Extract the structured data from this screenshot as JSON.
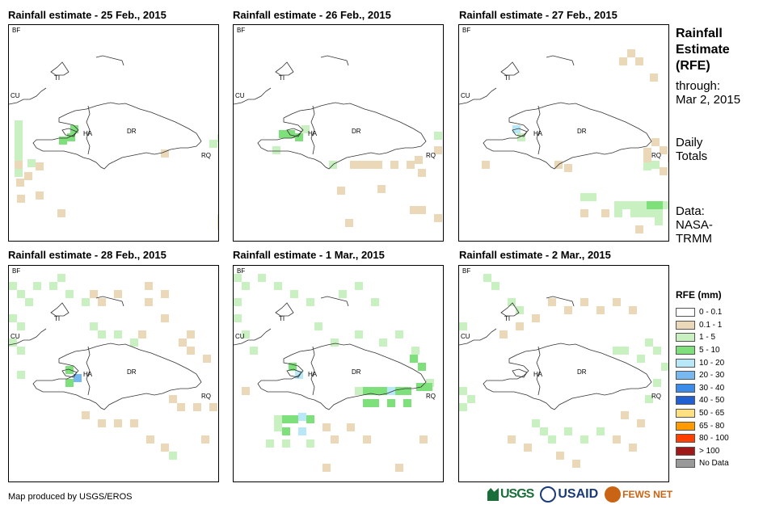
{
  "panels": [
    {
      "title": "Rainfall estimate - 25 Feb., 2015",
      "labels": {
        "HA": "HA",
        "DR": "DR",
        "RQ": "RQ",
        "CU": "CU",
        "BF": "BF",
        "TI": "TI"
      },
      "cells": [
        [
          7,
          118,
          "#c8f0c0"
        ],
        [
          7,
          128,
          "#c8f0c0"
        ],
        [
          7,
          138,
          "#c8f0c0"
        ],
        [
          7,
          148,
          "#c8f0c0"
        ],
        [
          7,
          158,
          "#c8f0c0"
        ],
        [
          7,
          168,
          "#ead8b8"
        ],
        [
          7,
          178,
          "#c8f0c0"
        ],
        [
          9,
          190,
          "#ead8b8"
        ],
        [
          19,
          182,
          "#ead8b8"
        ],
        [
          23,
          166,
          "#c8f0c0"
        ],
        [
          33,
          170,
          "#ead8b8"
        ],
        [
          33,
          206,
          "#ead8b8"
        ],
        [
          10,
          210,
          "#ead8b8"
        ],
        [
          60,
          228,
          "#ead8b8"
        ],
        [
          76,
          124,
          "#7ee07a"
        ],
        [
          72,
          134,
          "#7ee07a"
        ],
        [
          62,
          138,
          "#7ee07a"
        ],
        [
          248,
          142,
          "#c8f0c0"
        ],
        [
          258,
          135,
          "#c8f0c0"
        ],
        [
          188,
          154,
          "#ead8b8"
        ],
        [
          258,
          234,
          "#ead8b8"
        ],
        [
          258,
          244,
          "#ead8b8"
        ]
      ]
    },
    {
      "title": "Rainfall estimate - 26 Feb., 2015",
      "labels": {
        "HA": "HA",
        "DR": "DR",
        "RQ": "RQ",
        "CU": "CU",
        "BF": "BF",
        "TI": "TI"
      },
      "cells": [
        [
          56,
          130,
          "#7ee07a"
        ],
        [
          66,
          130,
          "#7ee07a"
        ],
        [
          76,
          134,
          "#7ee07a"
        ],
        [
          84,
          124,
          "#c8f0c0"
        ],
        [
          48,
          150,
          "#c8f0c0"
        ],
        [
          118,
          168,
          "#c8f0c0"
        ],
        [
          144,
          168,
          "#ead8b8"
        ],
        [
          154,
          168,
          "#ead8b8"
        ],
        [
          164,
          168,
          "#ead8b8"
        ],
        [
          174,
          168,
          "#ead8b8"
        ],
        [
          194,
          168,
          "#ead8b8"
        ],
        [
          214,
          168,
          "#ead8b8"
        ],
        [
          224,
          162,
          "#ead8b8"
        ],
        [
          248,
          132,
          "#c8f0c0"
        ],
        [
          248,
          150,
          "#ead8b8"
        ],
        [
          228,
          178,
          "#ead8b8"
        ],
        [
          218,
          224,
          "#ead8b8"
        ],
        [
          228,
          224,
          "#ead8b8"
        ],
        [
          138,
          240,
          "#ead8b8"
        ],
        [
          248,
          234,
          "#ead8b8"
        ],
        [
          178,
          198,
          "#ead8b8"
        ],
        [
          128,
          200,
          "#ead8b8"
        ]
      ]
    },
    {
      "title": "Rainfall estimate - 27 Feb., 2015",
      "labels": {
        "HA": "HA",
        "DR": "DR",
        "RQ": "RQ",
        "CU": "CU",
        "BF": "BF",
        "TI": "TI"
      },
      "cells": [
        [
          208,
          30,
          "#ead8b8"
        ],
        [
          198,
          40,
          "#ead8b8"
        ],
        [
          218,
          40,
          "#ead8b8"
        ],
        [
          236,
          60,
          "#ead8b8"
        ],
        [
          228,
          152,
          "#ead8b8"
        ],
        [
          238,
          140,
          "#ead8b8"
        ],
        [
          248,
          150,
          "#ead8b8"
        ],
        [
          228,
          160,
          "#ead8b8"
        ],
        [
          258,
          160,
          "#ead8b8"
        ],
        [
          228,
          170,
          "#c8f0c0"
        ],
        [
          238,
          168,
          "#c8f0c0"
        ],
        [
          248,
          176,
          "#ead8b8"
        ],
        [
          66,
          124,
          "#b8e8f8"
        ],
        [
          72,
          134,
          "#c8f0c0"
        ],
        [
          118,
          168,
          "#ead8b8"
        ],
        [
          130,
          172,
          "#ead8b8"
        ],
        [
          28,
          168,
          "#ead8b8"
        ],
        [
          150,
          208,
          "#c8f0c0"
        ],
        [
          160,
          208,
          "#c8f0c0"
        ],
        [
          192,
          218,
          "#c8f0c0"
        ],
        [
          202,
          218,
          "#c8f0c0"
        ],
        [
          212,
          218,
          "#c8f0c0"
        ],
        [
          222,
          218,
          "#c8f0c0"
        ],
        [
          232,
          218,
          "#7ee07a"
        ],
        [
          242,
          218,
          "#7ee07a"
        ],
        [
          252,
          218,
          "#c8f0c0"
        ],
        [
          192,
          228,
          "#c8f0c0"
        ],
        [
          212,
          228,
          "#c8f0c0"
        ],
        [
          222,
          228,
          "#c8f0c0"
        ],
        [
          232,
          228,
          "#c8f0c0"
        ],
        [
          242,
          228,
          "#c8f0c0"
        ],
        [
          242,
          238,
          "#c8f0c0"
        ],
        [
          218,
          248,
          "#ead8b8"
        ],
        [
          176,
          228,
          "#ead8b8"
        ],
        [
          150,
          228,
          "#ead8b8"
        ]
      ]
    },
    {
      "title": "Rainfall estimate - 28 Feb., 2015",
      "labels": {
        "HA": "HA",
        "DR": "DR",
        "RQ": "RQ",
        "CU": "CU",
        "BF": "BF",
        "TI": "TI"
      },
      "cells": [
        [
          0,
          20,
          "#c8f0c0"
        ],
        [
          10,
          30,
          "#c8f0c0"
        ],
        [
          20,
          40,
          "#c8f0c0"
        ],
        [
          30,
          20,
          "#c8f0c0"
        ],
        [
          50,
          20,
          "#c8f0c0"
        ],
        [
          60,
          10,
          "#c8f0c0"
        ],
        [
          70,
          30,
          "#c8f0c0"
        ],
        [
          90,
          40,
          "#c8f0c0"
        ],
        [
          100,
          30,
          "#ead8b8"
        ],
        [
          110,
          40,
          "#ead8b8"
        ],
        [
          130,
          30,
          "#ead8b8"
        ],
        [
          168,
          20,
          "#ead8b8"
        ],
        [
          168,
          40,
          "#ead8b8"
        ],
        [
          188,
          30,
          "#ead8b8"
        ],
        [
          188,
          60,
          "#ead8b8"
        ],
        [
          0,
          60,
          "#c8f0c0"
        ],
        [
          10,
          70,
          "#c8f0c0"
        ],
        [
          0,
          90,
          "#c8f0c0"
        ],
        [
          10,
          100,
          "#c8f0c0"
        ],
        [
          100,
          70,
          "#c8f0c0"
        ],
        [
          110,
          80,
          "#c8f0c0"
        ],
        [
          130,
          80,
          "#c8f0c0"
        ],
        [
          150,
          90,
          "#c8f0c0"
        ],
        [
          160,
          80,
          "#ead8b8"
        ],
        [
          210,
          90,
          "#ead8b8"
        ],
        [
          220,
          100,
          "#ead8b8"
        ],
        [
          240,
          110,
          "#ead8b8"
        ],
        [
          220,
          80,
          "#ead8b8"
        ],
        [
          70,
          124,
          "#7ee07a"
        ],
        [
          80,
          134,
          "#78b8f0"
        ],
        [
          70,
          140,
          "#7ee07a"
        ],
        [
          10,
          130,
          "#c8f0c0"
        ],
        [
          198,
          160,
          "#ead8b8"
        ],
        [
          208,
          170,
          "#ead8b8"
        ],
        [
          228,
          170,
          "#ead8b8"
        ],
        [
          248,
          170,
          "#ead8b8"
        ],
        [
          90,
          180,
          "#ead8b8"
        ],
        [
          110,
          190,
          "#ead8b8"
        ],
        [
          130,
          190,
          "#ead8b8"
        ],
        [
          150,
          190,
          "#ead8b8"
        ],
        [
          170,
          210,
          "#ead8b8"
        ],
        [
          188,
          220,
          "#ead8b8"
        ],
        [
          198,
          230,
          "#c8f0c0"
        ],
        [
          238,
          210,
          "#ead8b8"
        ]
      ]
    },
    {
      "title": "Rainfall estimate - 1 Mar., 2015",
      "labels": {
        "HA": "HA",
        "DR": "DR",
        "RQ": "RQ",
        "CU": "CU",
        "BF": "BF",
        "TI": "TI"
      },
      "cells": [
        [
          0,
          10,
          "#c8f0c0"
        ],
        [
          10,
          20,
          "#c8f0c0"
        ],
        [
          30,
          10,
          "#c8f0c0"
        ],
        [
          50,
          20,
          "#c8f0c0"
        ],
        [
          70,
          30,
          "#c8f0c0"
        ],
        [
          90,
          40,
          "#c8f0c0"
        ],
        [
          130,
          30,
          "#c8f0c0"
        ],
        [
          150,
          20,
          "#c8f0c0"
        ],
        [
          170,
          40,
          "#c8f0c0"
        ],
        [
          0,
          40,
          "#c8f0c0"
        ],
        [
          0,
          60,
          "#c8f0c0"
        ],
        [
          10,
          80,
          "#c8f0c0"
        ],
        [
          20,
          100,
          "#c8f0c0"
        ],
        [
          100,
          70,
          "#c8f0c0"
        ],
        [
          120,
          90,
          "#c8f0c0"
        ],
        [
          150,
          80,
          "#c8f0c0"
        ],
        [
          180,
          90,
          "#c8f0c0"
        ],
        [
          200,
          80,
          "#c8f0c0"
        ],
        [
          220,
          100,
          "#c8f0c0"
        ],
        [
          218,
          110,
          "#7ee07a"
        ],
        [
          228,
          120,
          "#7ee07a"
        ],
        [
          238,
          140,
          "#c8f0c0"
        ],
        [
          68,
          120,
          "#7ee07a"
        ],
        [
          76,
          130,
          "#b8e8f8"
        ],
        [
          10,
          150,
          "#ead8b8"
        ],
        [
          150,
          150,
          "#c8f0c0"
        ],
        [
          160,
          150,
          "#7ee07a"
        ],
        [
          170,
          150,
          "#7ee07a"
        ],
        [
          180,
          150,
          "#7ee07a"
        ],
        [
          190,
          150,
          "#b8e8f8"
        ],
        [
          200,
          150,
          "#7ee07a"
        ],
        [
          210,
          150,
          "#7ee07a"
        ],
        [
          226,
          145,
          "#7ee07a"
        ],
        [
          236,
          145,
          "#7ee07a"
        ],
        [
          160,
          165,
          "#7ee07a"
        ],
        [
          170,
          165,
          "#7ee07a"
        ],
        [
          190,
          165,
          "#7ee07a"
        ],
        [
          210,
          165,
          "#7ee07a"
        ],
        [
          50,
          185,
          "#c8f0c0"
        ],
        [
          60,
          185,
          "#7ee07a"
        ],
        [
          70,
          185,
          "#7ee07a"
        ],
        [
          80,
          182,
          "#b8e8f8"
        ],
        [
          90,
          185,
          "#7ee07a"
        ],
        [
          50,
          195,
          "#c8f0c0"
        ],
        [
          60,
          200,
          "#7ee07a"
        ],
        [
          80,
          200,
          "#b8e8f8"
        ],
        [
          110,
          195,
          "#ead8b8"
        ],
        [
          140,
          195,
          "#ead8b8"
        ],
        [
          120,
          210,
          "#ead8b8"
        ],
        [
          160,
          210,
          "#ead8b8"
        ],
        [
          40,
          215,
          "#c8f0c0"
        ],
        [
          60,
          215,
          "#c8f0c0"
        ],
        [
          90,
          215,
          "#c8f0c0"
        ],
        [
          110,
          245,
          "#ead8b8"
        ],
        [
          200,
          245,
          "#ead8b8"
        ],
        [
          230,
          210,
          "#ead8b8"
        ]
      ]
    },
    {
      "title": "Rainfall estimate - 2 Mar., 2015",
      "labels": {
        "HA": "HA",
        "DR": "DR",
        "RQ": "RQ",
        "CU": "CU",
        "BF": "BF",
        "TI": "TI"
      },
      "cells": [
        [
          30,
          10,
          "#c8f0c0"
        ],
        [
          40,
          20,
          "#c8f0c0"
        ],
        [
          60,
          40,
          "#c8f0c0"
        ],
        [
          70,
          50,
          "#c8f0c0"
        ],
        [
          90,
          60,
          "#ead8b8"
        ],
        [
          110,
          40,
          "#ead8b8"
        ],
        [
          130,
          50,
          "#ead8b8"
        ],
        [
          150,
          40,
          "#ead8b8"
        ],
        [
          170,
          50,
          "#ead8b8"
        ],
        [
          190,
          40,
          "#ead8b8"
        ],
        [
          210,
          50,
          "#ead8b8"
        ],
        [
          0,
          70,
          "#c8f0c0"
        ],
        [
          50,
          80,
          "#ead8b8"
        ],
        [
          70,
          70,
          "#ead8b8"
        ],
        [
          190,
          100,
          "#c8f0c0"
        ],
        [
          200,
          100,
          "#c8f0c0"
        ],
        [
          220,
          110,
          "#c8f0c0"
        ],
        [
          230,
          90,
          "#c8f0c0"
        ],
        [
          240,
          100,
          "#c8f0c0"
        ],
        [
          250,
          120,
          "#c8f0c0"
        ],
        [
          240,
          140,
          "#c8f0c0"
        ],
        [
          230,
          160,
          "#c8f0c0"
        ],
        [
          0,
          150,
          "#c8f0c0"
        ],
        [
          10,
          160,
          "#c8f0c0"
        ],
        [
          0,
          170,
          "#c8f0c0"
        ],
        [
          90,
          190,
          "#c8f0c0"
        ],
        [
          100,
          200,
          "#c8f0c0"
        ],
        [
          110,
          210,
          "#c8f0c0"
        ],
        [
          130,
          200,
          "#c8f0c0"
        ],
        [
          150,
          210,
          "#c8f0c0"
        ],
        [
          170,
          200,
          "#c8f0c0"
        ],
        [
          190,
          210,
          "#ead8b8"
        ],
        [
          210,
          220,
          "#ead8b8"
        ],
        [
          80,
          220,
          "#ead8b8"
        ],
        [
          60,
          210,
          "#ead8b8"
        ],
        [
          120,
          230,
          "#ead8b8"
        ],
        [
          140,
          240,
          "#ead8b8"
        ],
        [
          200,
          180,
          "#ead8b8"
        ],
        [
          220,
          190,
          "#ead8b8"
        ]
      ]
    }
  ],
  "sidebar": {
    "title_line1": "Rainfall",
    "title_line2": "Estimate",
    "title_line3": "(RFE)",
    "through_label": "through:",
    "through_date": "Mar 2, 2015",
    "daily_line1": "Daily",
    "daily_line2": "Totals",
    "data_line1": "Data:",
    "data_line2": "NASA-",
    "data_line3": "TRMM"
  },
  "legend": {
    "title": "RFE (mm)",
    "items": [
      {
        "label": "0 - 0.1",
        "color": "#ffffff"
      },
      {
        "label": "0.1 - 1",
        "color": "#ead8b8"
      },
      {
        "label": "1 - 5",
        "color": "#c8f0c0"
      },
      {
        "label": "5 - 10",
        "color": "#7ee07a"
      },
      {
        "label": "10 - 20",
        "color": "#b8e8f8"
      },
      {
        "label": "20 - 30",
        "color": "#78b8f0"
      },
      {
        "label": "30 - 40",
        "color": "#3a8ce8"
      },
      {
        "label": "40 - 50",
        "color": "#2060d0"
      },
      {
        "label": "50 - 65",
        "color": "#ffe080"
      },
      {
        "label": "65 - 80",
        "color": "#ff9a00"
      },
      {
        "label": "80 - 100",
        "color": "#ff4000"
      },
      {
        "label": "> 100",
        "color": "#a01818"
      },
      {
        "label": "No Data",
        "color": "#999999"
      }
    ]
  },
  "footer": {
    "credit": "Map produced by USGS/EROS"
  },
  "logos": {
    "usgs": "USGS",
    "usaid": "USAID",
    "fews": "FEWS NET"
  }
}
